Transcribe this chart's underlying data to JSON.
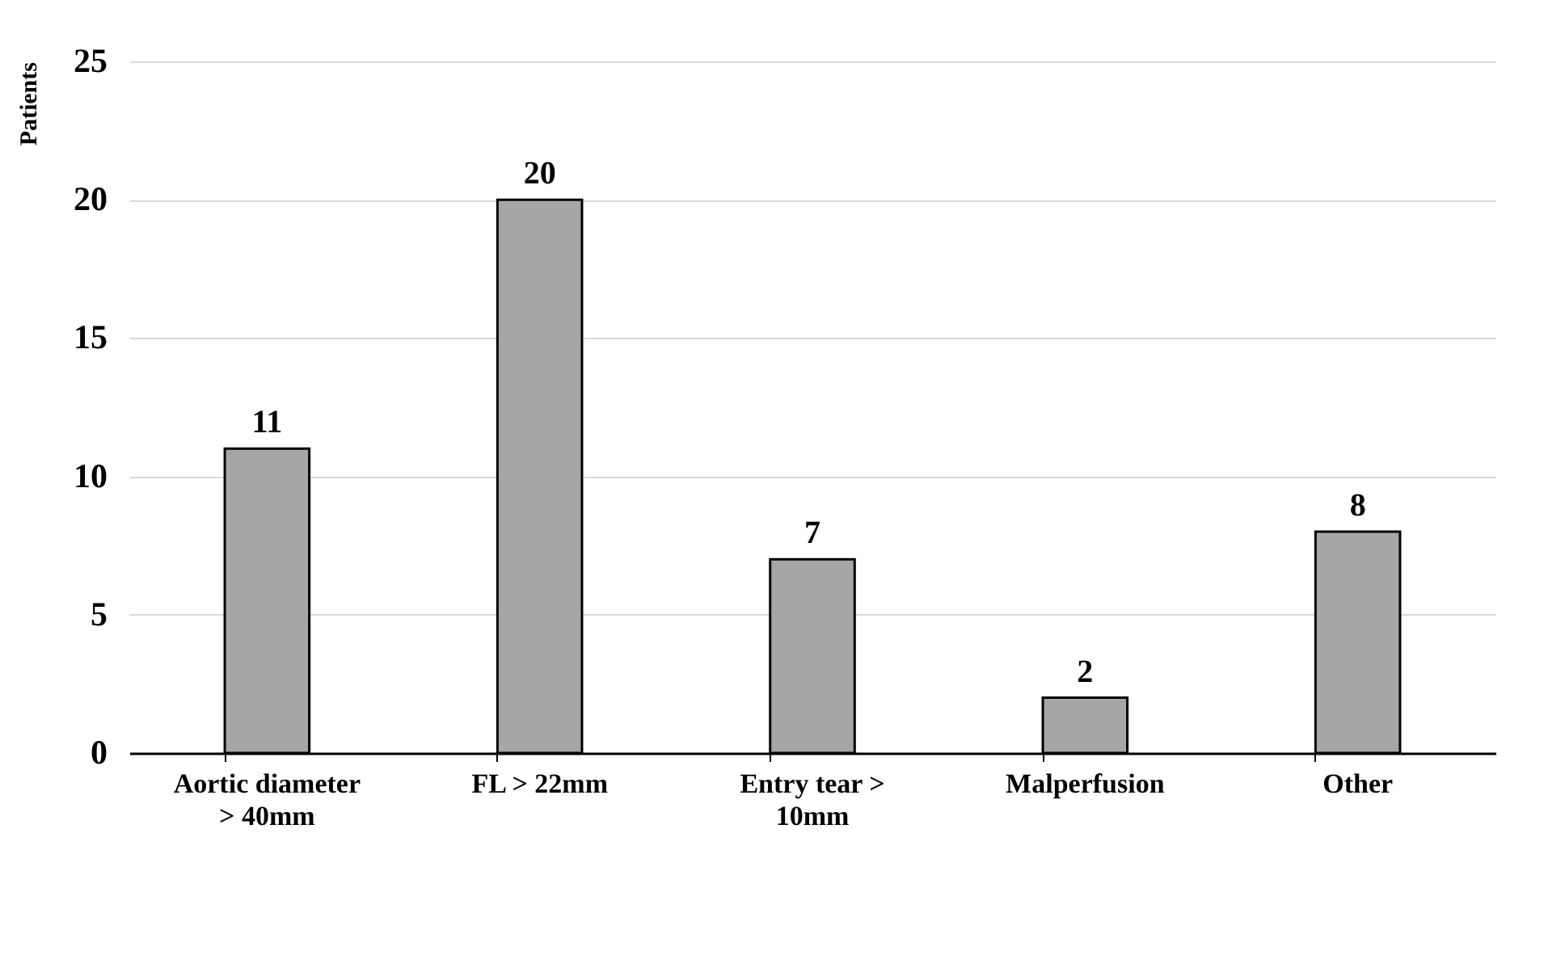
{
  "chart_data": {
    "type": "bar",
    "ylabel": "Patients",
    "categories": [
      "Aortic diameter > 40mm",
      "FL > 22mm",
      "Entry tear > 10mm",
      "Malperfusion",
      "Other"
    ],
    "values": [
      11,
      20,
      7,
      2,
      8
    ],
    "color": "#a6a6a6",
    "ylim": [
      0,
      25
    ],
    "yticks": [
      0,
      5,
      10,
      15,
      20,
      25
    ],
    "grid": "y",
    "data_labels": true
  }
}
